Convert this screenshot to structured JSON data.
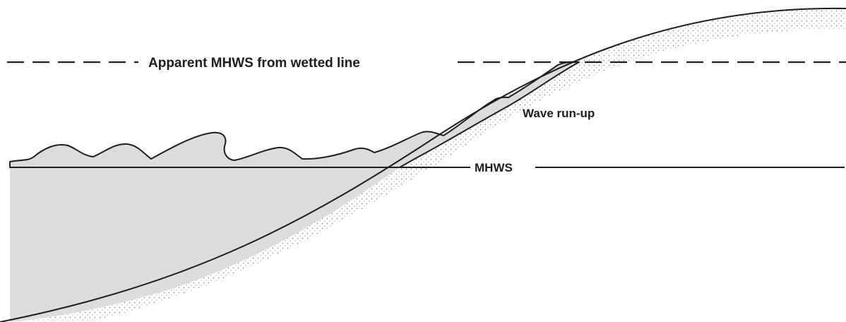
{
  "labels": {
    "apparent_mhws": "Apparent MHWS from wetted line",
    "wave_run_up": "Wave run-up",
    "mhws": "MHWS"
  },
  "colors": {
    "ink": "#1e1e1e",
    "water_fill": "#dcdcdc",
    "beach_stipple": "#7a7a7a",
    "background": "#ffffff"
  }
}
